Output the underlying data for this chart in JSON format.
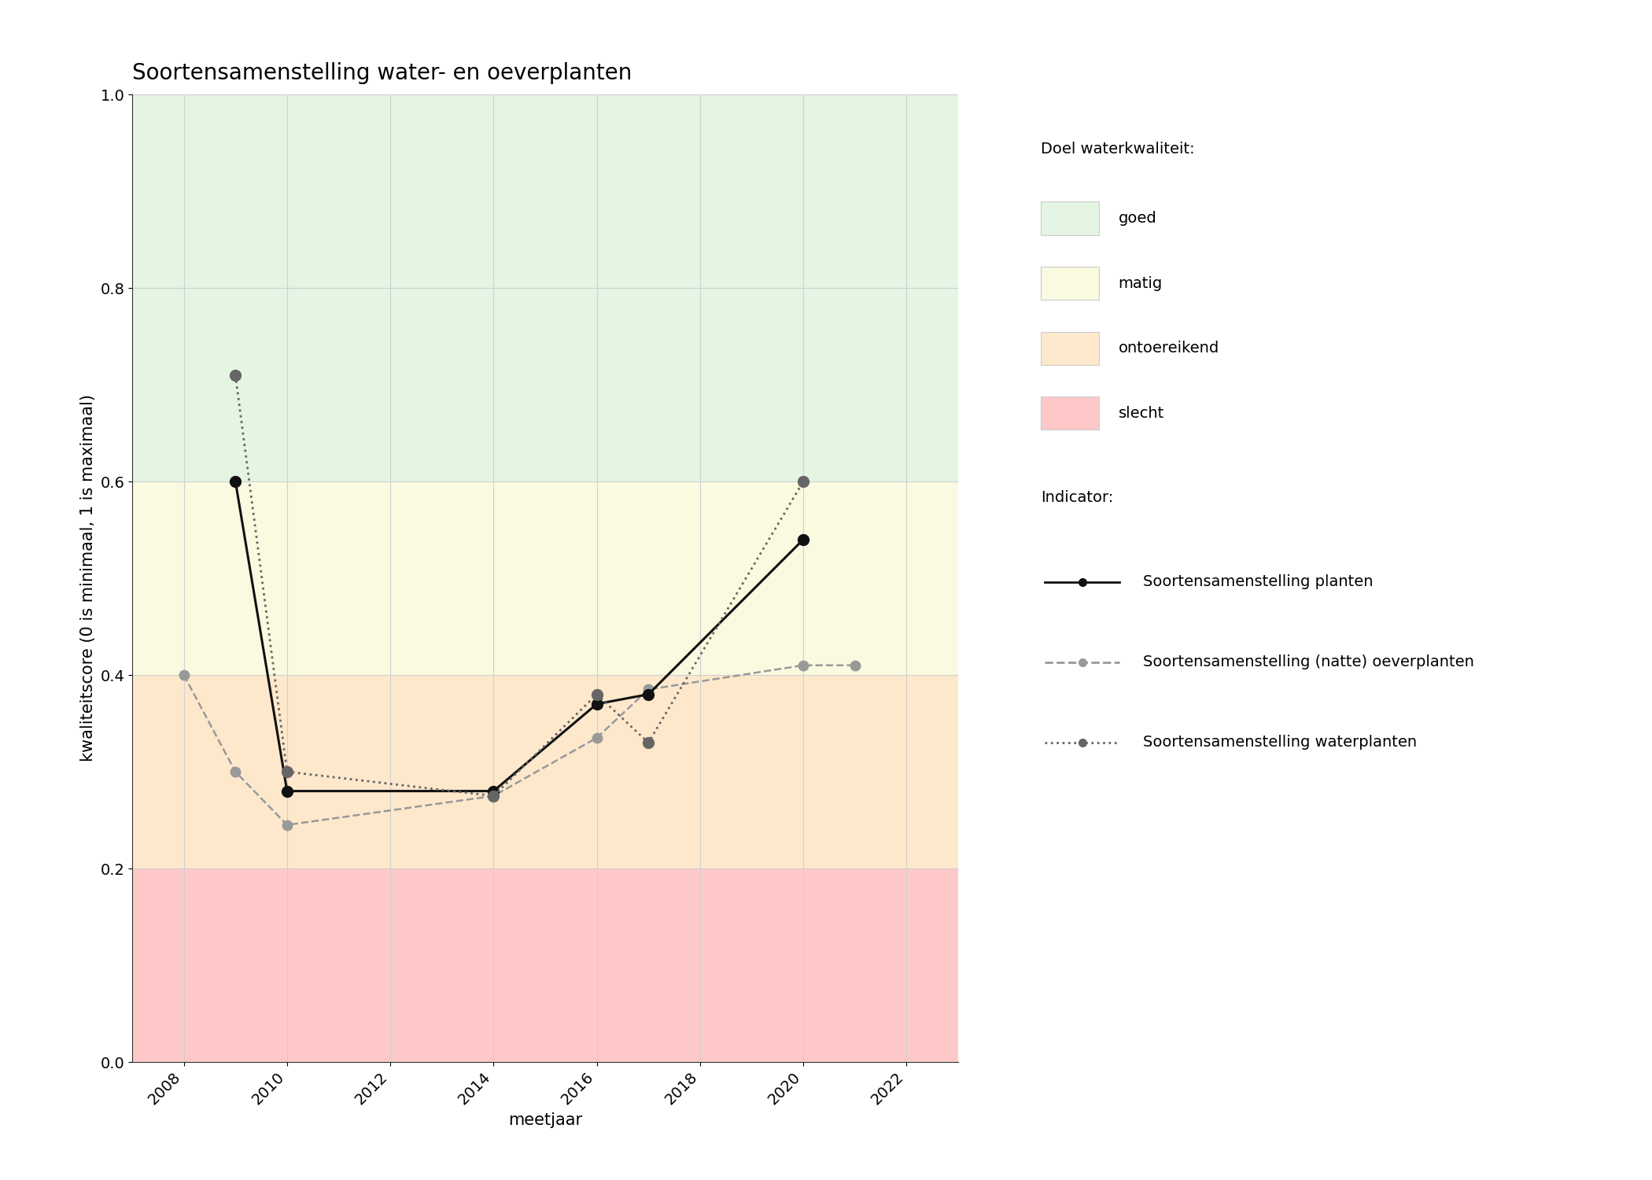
{
  "title": "Soortensamenstelling water- en oeverplanten",
  "xlabel": "meetjaar",
  "ylabel": "kwaliteitscore (0 is minimaal, 1 is maximaal)",
  "xlim": [
    2007,
    2023
  ],
  "ylim": [
    0.0,
    1.0
  ],
  "xticks": [
    2008,
    2010,
    2012,
    2014,
    2016,
    2018,
    2020,
    2022
  ],
  "bg_zones": [
    {
      "ymin": 0.0,
      "ymax": 0.2,
      "color": "#ffc8c8",
      "label": "slecht"
    },
    {
      "ymin": 0.2,
      "ymax": 0.4,
      "color": "#fde8cc",
      "label": "ontoereikend"
    },
    {
      "ymin": 0.4,
      "ymax": 0.6,
      "color": "#fafae0",
      "label": "matig"
    },
    {
      "ymin": 0.6,
      "ymax": 1.0,
      "color": "#e4f5e4",
      "label": "goed"
    }
  ],
  "series": [
    {
      "name": "Soortensamenstelling planten",
      "x": [
        2009,
        2010,
        2014,
        2016,
        2017,
        2020
      ],
      "y": [
        0.6,
        0.28,
        0.28,
        0.37,
        0.38,
        0.54
      ],
      "color": "#111111",
      "linestyle": "-",
      "marker": "o",
      "linewidth": 2.2,
      "markersize": 10,
      "zorder": 5
    },
    {
      "name": "Soortensamenstelling (natte) oeverplanten",
      "x": [
        2008,
        2009,
        2010,
        2014,
        2016,
        2017,
        2020,
        2021
      ],
      "y": [
        0.4,
        0.3,
        0.245,
        0.275,
        0.335,
        0.385,
        0.41,
        0.41
      ],
      "color": "#999999",
      "linestyle": "--",
      "marker": "o",
      "linewidth": 1.8,
      "markersize": 9,
      "zorder": 4
    },
    {
      "name": "Soortensamenstelling waterplanten",
      "x": [
        2009,
        2010,
        2014,
        2016,
        2017,
        2020
      ],
      "y": [
        0.71,
        0.3,
        0.275,
        0.38,
        0.33,
        0.6
      ],
      "color": "#666666",
      "linestyle": ":",
      "marker": "o",
      "linewidth": 2.0,
      "markersize": 10,
      "zorder": 6
    }
  ],
  "legend_title_doel": "Doel waterkwaliteit:",
  "legend_title_indicator": "Indicator:",
  "background_color": "#ffffff",
  "grid_color": "#d0d0d0",
  "title_fontsize": 20,
  "label_fontsize": 15,
  "tick_fontsize": 14,
  "legend_fontsize": 14
}
